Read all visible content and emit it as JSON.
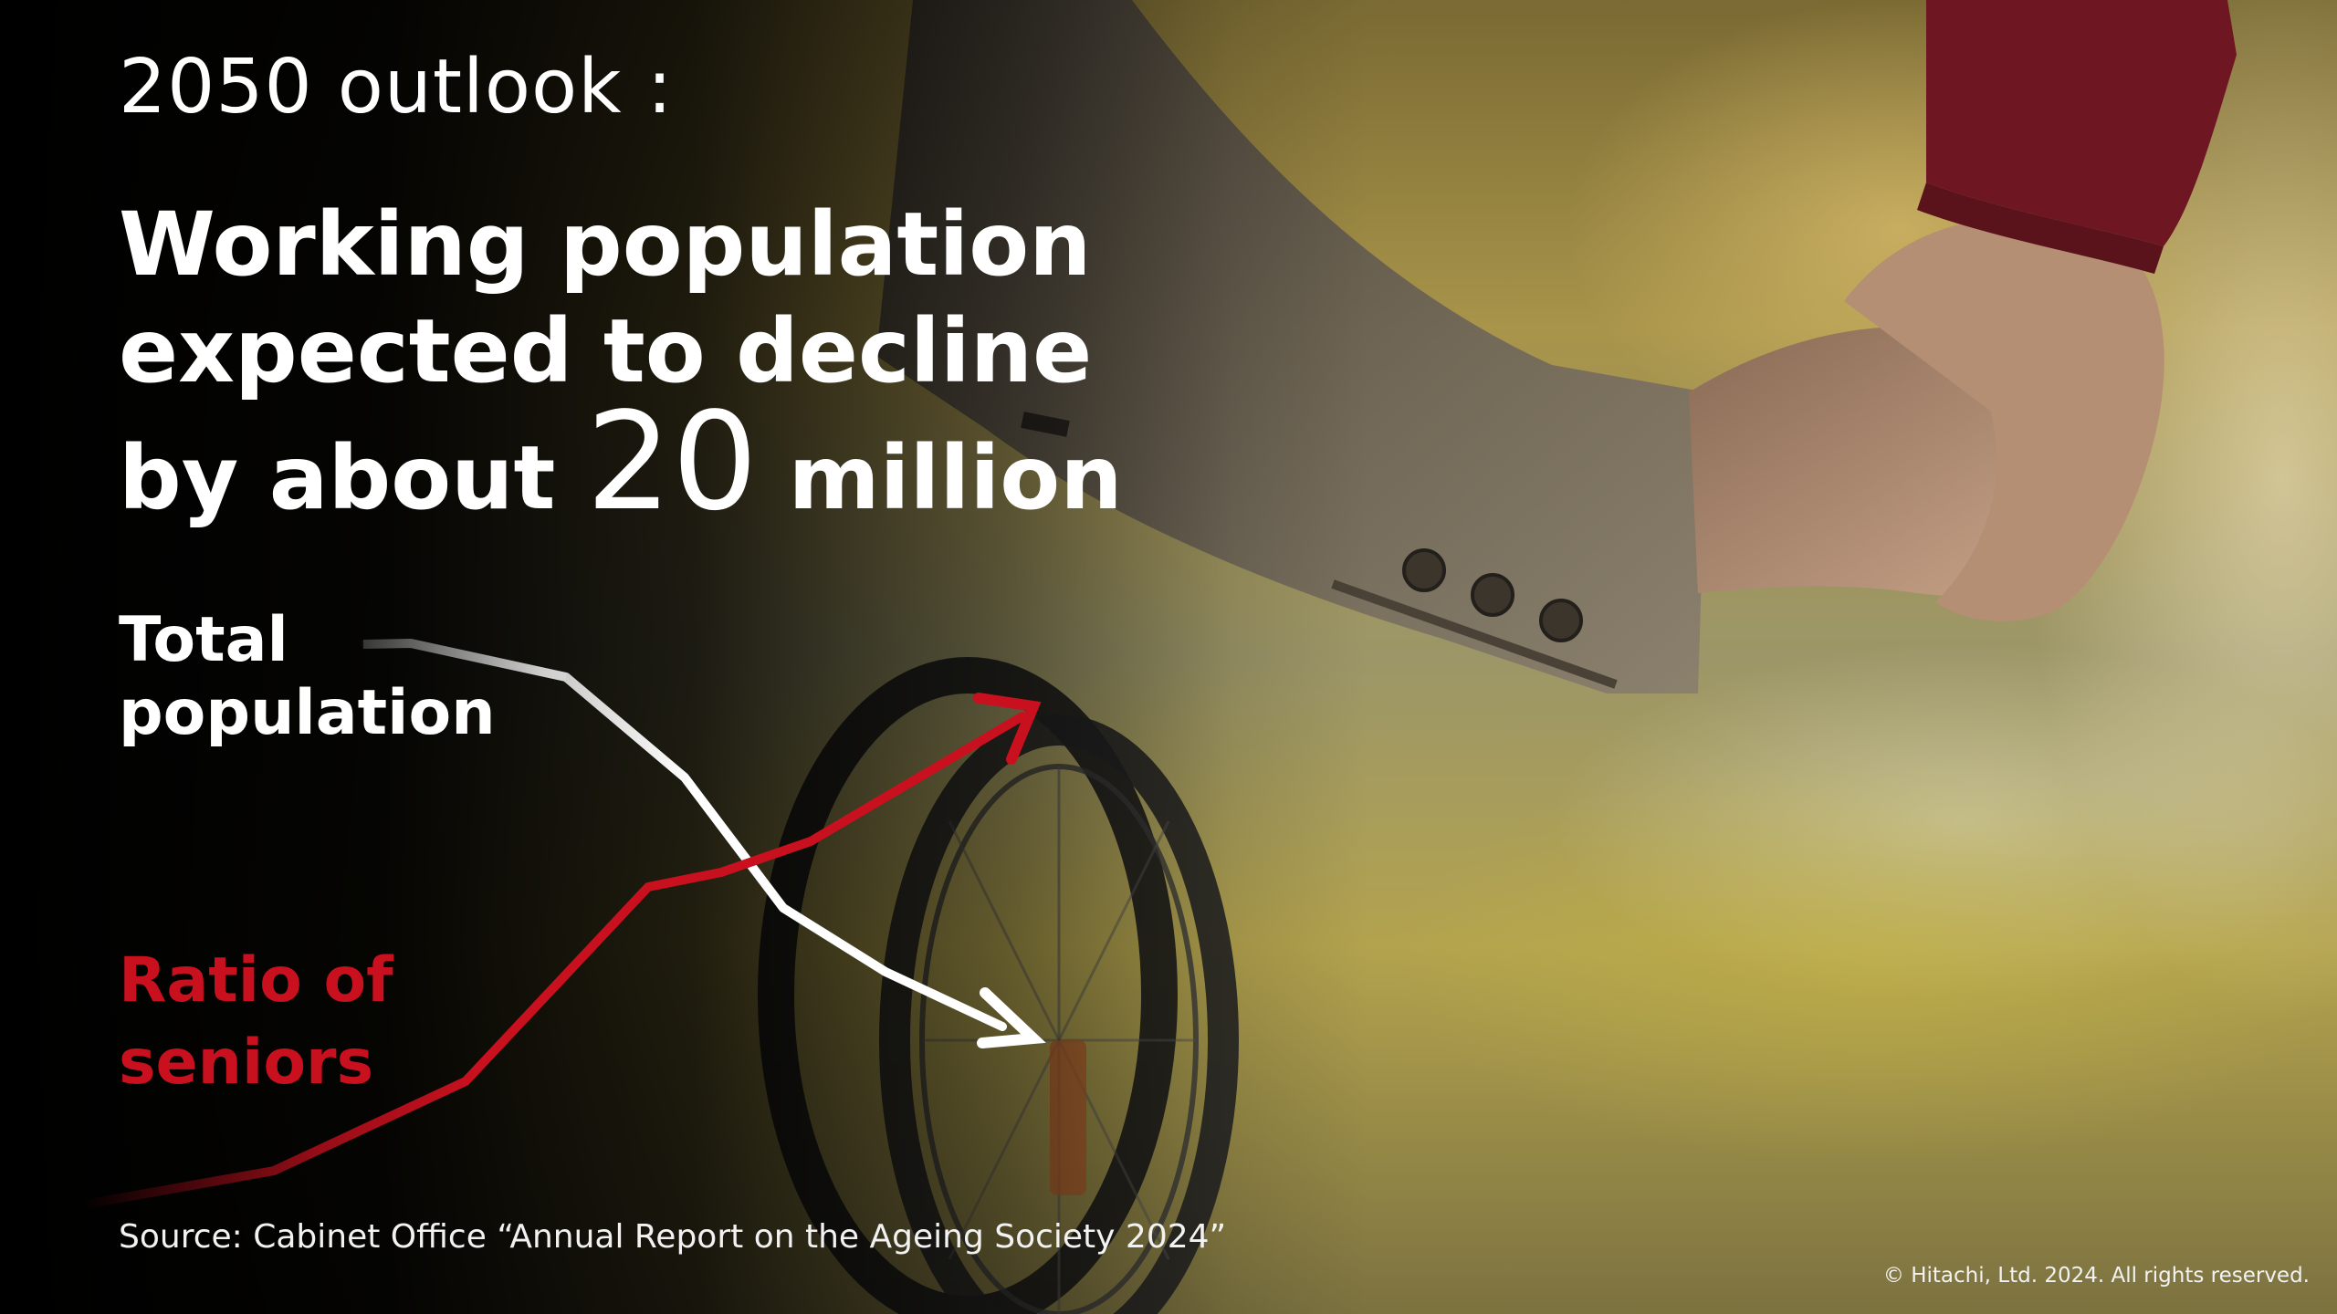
{
  "slide": {
    "outlook": "2050 outlook :",
    "headline_line1": "Working population",
    "headline_line2": "expected to decline",
    "headline_line3_pre": "by about ",
    "headline_number": "20",
    "headline_line3_post": " million",
    "total_population_label": [
      "Total",
      "population"
    ],
    "ratio_of_seniors_label": [
      "Ratio of",
      "seniors"
    ],
    "source": "Source: Cabinet Office “Annual Report on the Ageing Society 2024”",
    "copyright": "© Hitachi, Ltd. 2024. All rights reserved."
  },
  "colors": {
    "total_population_line": "#ffffff",
    "ratio_of_seniors_line": "#c8101e",
    "background": "#000000"
  },
  "icons": [
    "photo-hands-wheelchair",
    "arrow-down-icon",
    "arrow-up-icon"
  ]
}
